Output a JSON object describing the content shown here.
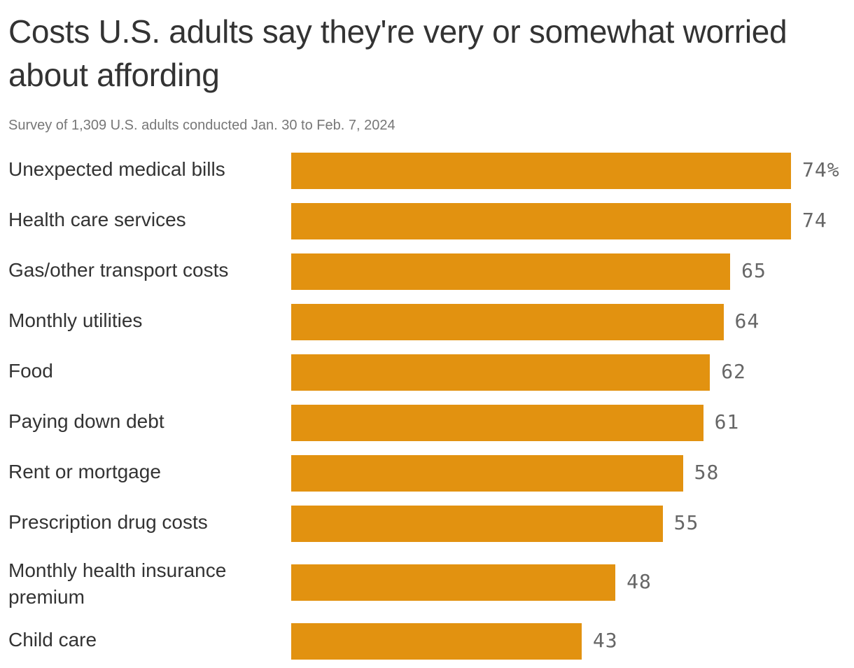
{
  "chart_data": {
    "type": "bar",
    "orientation": "horizontal",
    "title": "Costs U.S. adults say they're very or somewhat worried about affording",
    "subtitle": "Survey of 1,309 U.S. adults conducted Jan. 30 to Feb. 7, 2024",
    "categories": [
      "Unexpected medical bills",
      "Health care services",
      "Gas/other transport costs",
      "Monthly utilities",
      "Food",
      "Paying down debt",
      "Rent or mortgage",
      "Prescription drug costs",
      "Monthly health insurance premium",
      "Child care"
    ],
    "values": [
      74,
      74,
      65,
      64,
      62,
      61,
      58,
      55,
      48,
      43
    ],
    "value_labels": [
      "74%",
      "74",
      "65",
      "64",
      "62",
      "61",
      "58",
      "55",
      "48",
      "43"
    ],
    "unit": "%",
    "xlim": [
      0,
      74
    ],
    "grid": false,
    "bar_color": "#e29210"
  }
}
